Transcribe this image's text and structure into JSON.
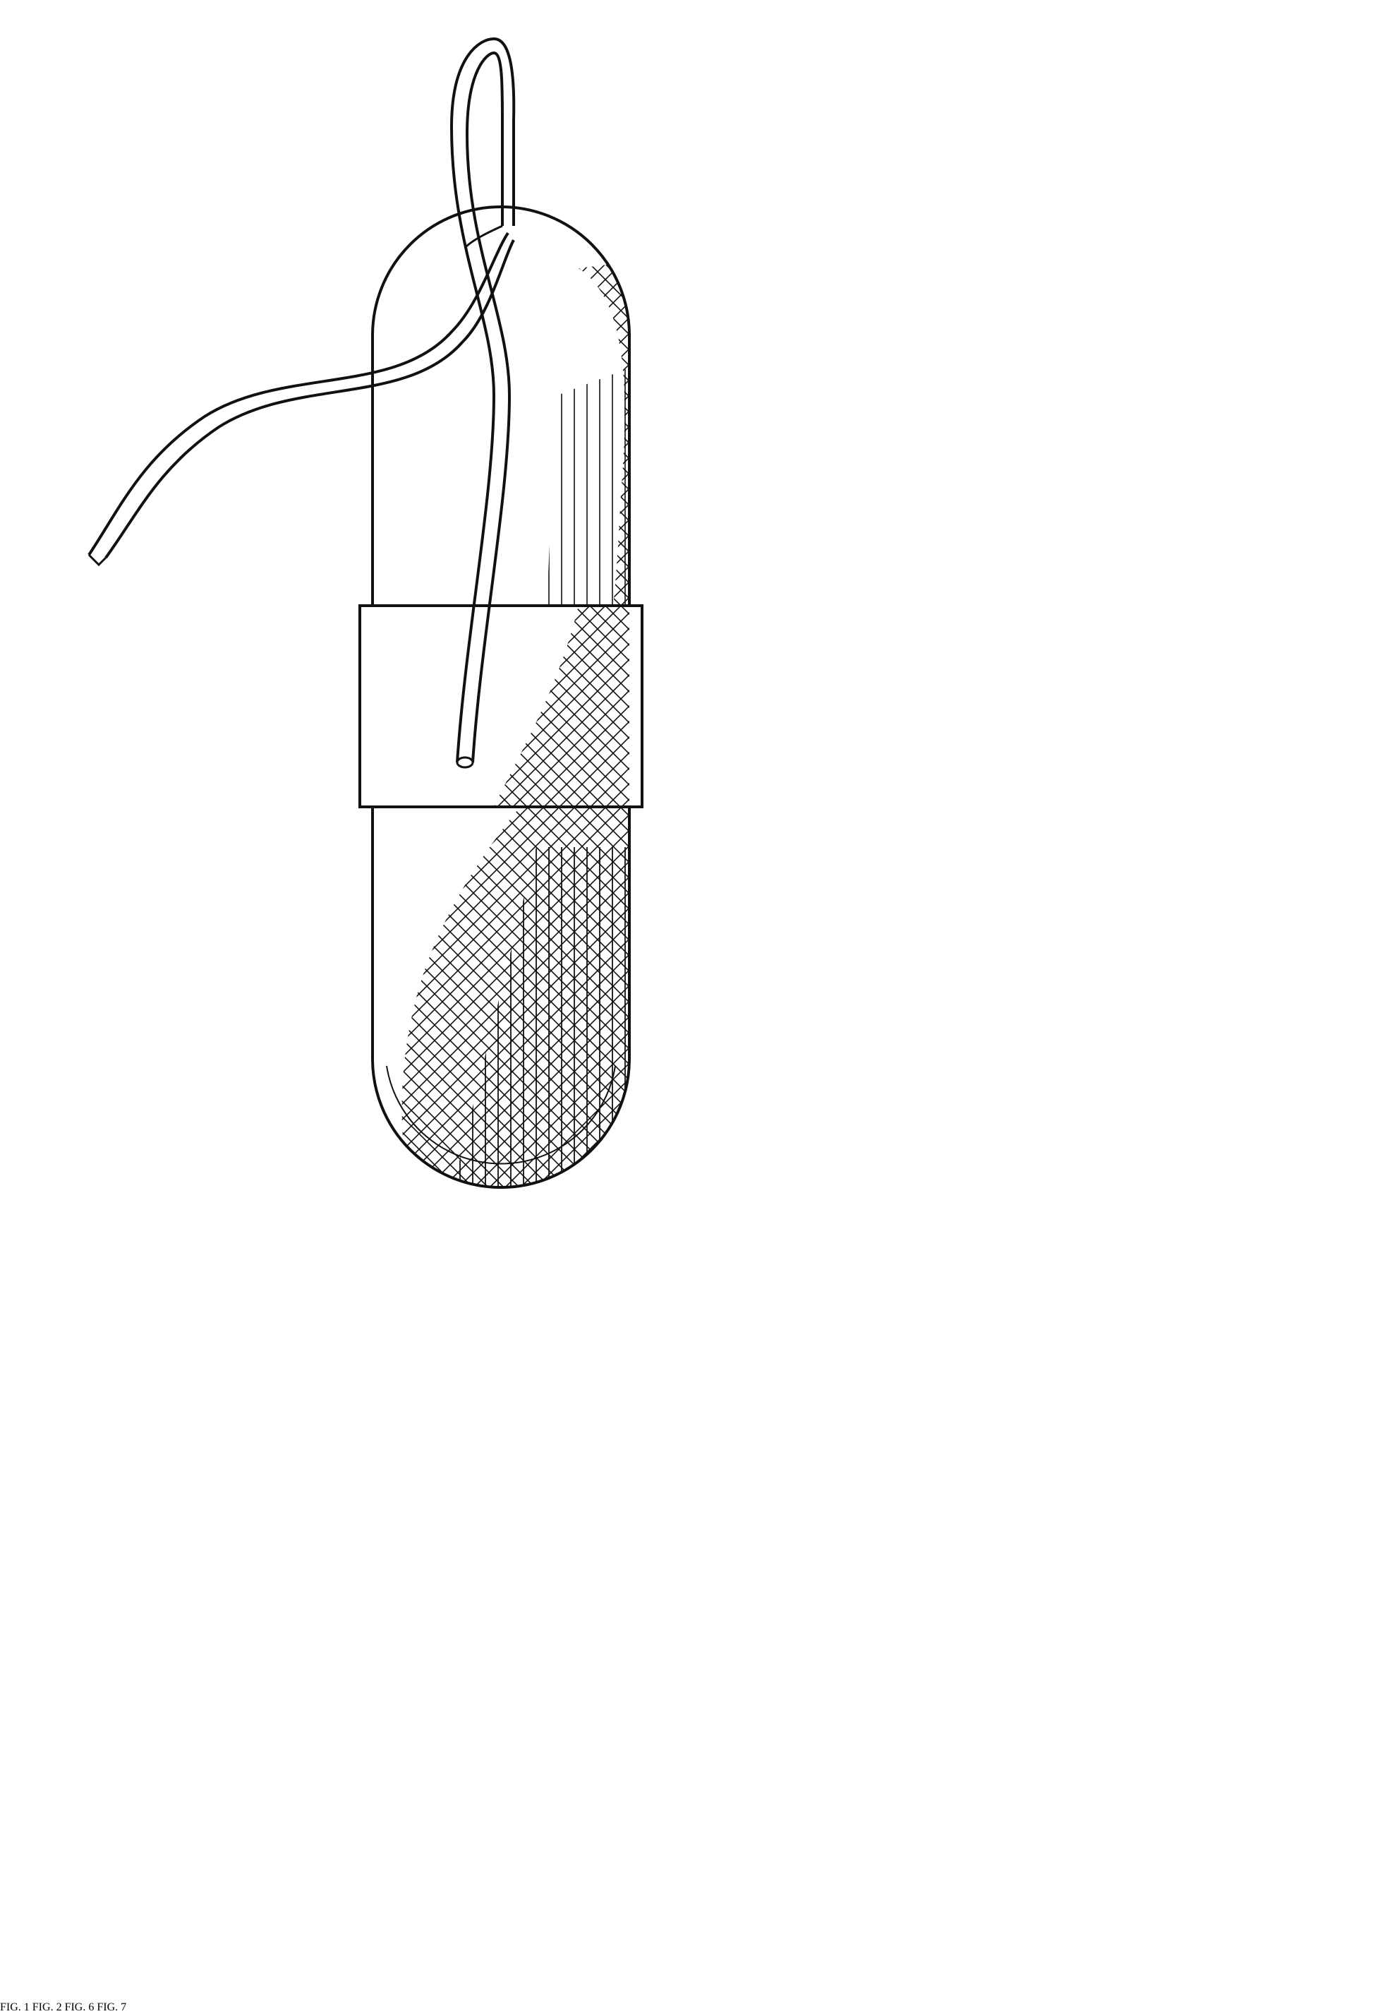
{
  "figures": [
    {
      "id": "fig1",
      "label": "FIG.  1"
    },
    {
      "id": "fig2",
      "label": "FIG.  2"
    },
    {
      "id": "fig6",
      "label": "FIG.  6"
    },
    {
      "id": "fig7",
      "label": "FIG.  7"
    }
  ],
  "colors": {
    "ink": "#111111",
    "paper": "#ffffff"
  }
}
